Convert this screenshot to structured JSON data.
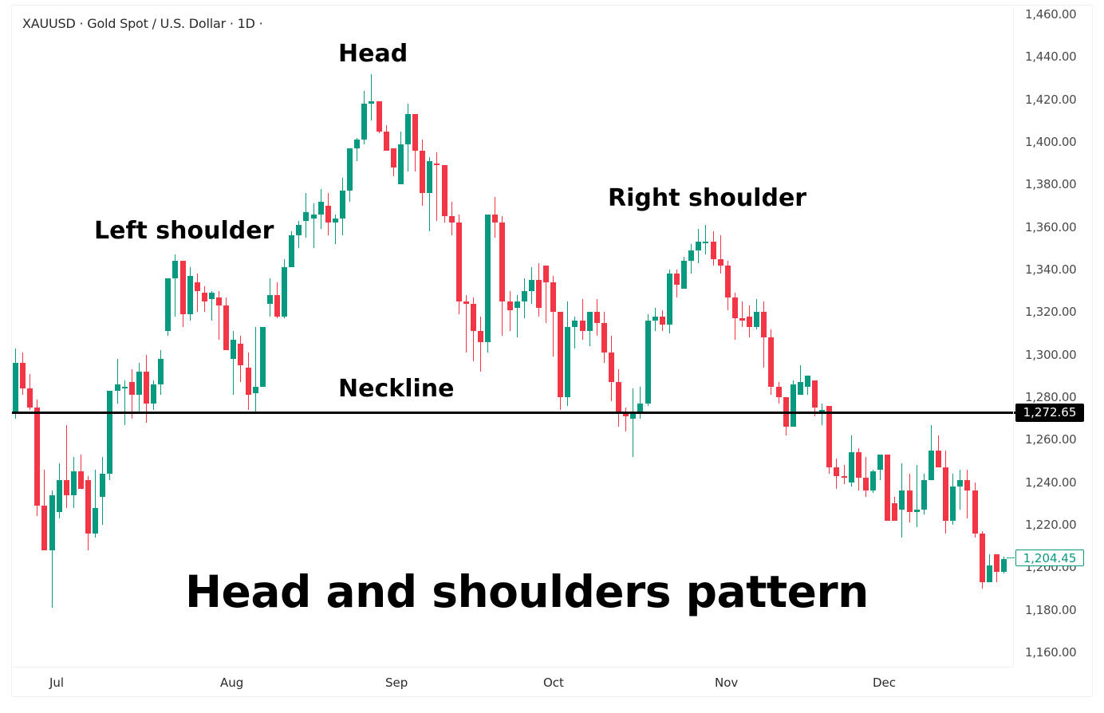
{
  "header": {
    "symbol_title": "XAUUSD · Gold Spot / U.S. Dollar · 1D ·"
  },
  "annotations": {
    "head": "Head",
    "left_shoulder": "Left shoulder",
    "right_shoulder": "Right shoulder",
    "neckline": "Neckline",
    "title": "Head and shoulders pattern"
  },
  "price_labels": {
    "neckline": "1,272.65",
    "last_price": "1,204.45"
  },
  "colors": {
    "up": "#089981",
    "down": "#f23645",
    "neckline": "#000000",
    "axis_text": "#4a4a4a"
  },
  "chart_data": {
    "type": "candlestick",
    "title": "XAUUSD · Gold Spot / U.S. Dollar · 1D",
    "subtitle": "Head and shoulders pattern",
    "xlabel": "",
    "ylabel": "",
    "x_tick_labels": [
      "Jul",
      "Aug",
      "Sep",
      "Oct",
      "Nov",
      "Dec"
    ],
    "y_tick_labels": [
      "1,460.00",
      "1,440.00",
      "1,420.00",
      "1,400.00",
      "1,380.00",
      "1,360.00",
      "1,340.00",
      "1,320.00",
      "1,300.00",
      "1,280.00",
      "1,260.00",
      "1,240.00",
      "1,220.00",
      "1,200.00",
      "1,180.00",
      "1,160.00"
    ],
    "y_ticks": [
      1460,
      1440,
      1420,
      1400,
      1380,
      1360,
      1340,
      1320,
      1300,
      1280,
      1260,
      1240,
      1220,
      1200,
      1180,
      1160
    ],
    "ylim": [
      1156,
      1462
    ],
    "grid": false,
    "legend": "none",
    "horizontal_lines": [
      {
        "name": "Neckline",
        "value": 1272.65
      }
    ],
    "last_price": 1204.45,
    "pattern_annotations": [
      {
        "label": "Left shoulder",
        "approx_price": 1347
      },
      {
        "label": "Head",
        "approx_price": 1433
      },
      {
        "label": "Right shoulder",
        "approx_price": 1361
      },
      {
        "label": "Neckline",
        "approx_price": 1272.65
      }
    ],
    "ohlc": [
      [
        1272,
        1303,
        1270,
        1296
      ],
      [
        1296,
        1301,
        1281,
        1284
      ],
      [
        1284,
        1291,
        1274,
        1275
      ],
      [
        1275,
        1279,
        1224,
        1229
      ],
      [
        1229,
        1246,
        1215,
        1208
      ],
      [
        1208,
        1236,
        1181,
        1234
      ],
      [
        1226,
        1249,
        1223,
        1241
      ],
      [
        1241,
        1267,
        1228,
        1234
      ],
      [
        1234,
        1252,
        1228,
        1245
      ],
      [
        1245,
        1253,
        1237,
        1237
      ],
      [
        1241,
        1243,
        1208,
        1216
      ],
      [
        1216,
        1246,
        1214,
        1228
      ],
      [
        1233,
        1252,
        1220,
        1244
      ],
      [
        1244,
        1283,
        1241,
        1283
      ],
      [
        1283,
        1298,
        1277,
        1286
      ],
      [
        1285,
        1288,
        1267,
        1285
      ],
      [
        1287,
        1293,
        1270,
        1281
      ],
      [
        1281,
        1296,
        1273,
        1292
      ],
      [
        1292,
        1300,
        1268,
        1277
      ],
      [
        1277,
        1288,
        1274,
        1286
      ],
      [
        1286,
        1302,
        1281,
        1298
      ],
      [
        1311,
        1331,
        1309,
        1336
      ],
      [
        1336,
        1347,
        1318,
        1344
      ],
      [
        1344,
        1344,
        1313,
        1319
      ],
      [
        1319,
        1341,
        1316,
        1337
      ],
      [
        1334,
        1338,
        1320,
        1330
      ],
      [
        1329,
        1332,
        1320,
        1325
      ],
      [
        1326,
        1330,
        1316,
        1329
      ],
      [
        1327,
        1330,
        1307,
        1323
      ],
      [
        1323,
        1327,
        1302,
        1302
      ],
      [
        1298,
        1311,
        1281,
        1307
      ],
      [
        1305,
        1309,
        1287,
        1295
      ],
      [
        1294,
        1301,
        1274,
        1281
      ],
      [
        1282,
        1313,
        1272,
        1285
      ],
      [
        1285,
        1312,
        1290,
        1313
      ],
      [
        1324,
        1336,
        1318,
        1328
      ],
      [
        1328,
        1334,
        1317,
        1318
      ],
      [
        1318,
        1345,
        1317,
        1341
      ],
      [
        1341,
        1358,
        1342,
        1356
      ],
      [
        1356,
        1363,
        1350,
        1361
      ],
      [
        1363,
        1376,
        1355,
        1367
      ],
      [
        1364,
        1371,
        1350,
        1366
      ],
      [
        1366,
        1378,
        1359,
        1372
      ],
      [
        1370,
        1376,
        1356,
        1362
      ],
      [
        1362,
        1366,
        1352,
        1364
      ],
      [
        1364,
        1383,
        1356,
        1377
      ],
      [
        1377,
        1395,
        1372,
        1397
      ],
      [
        1397,
        1402,
        1391,
        1401
      ],
      [
        1401,
        1424,
        1399,
        1418
      ],
      [
        1418,
        1432,
        1410,
        1419
      ],
      [
        1419,
        1419,
        1404,
        1405
      ],
      [
        1405,
        1408,
        1399,
        1396
      ],
      [
        1397,
        1395,
        1384,
        1388
      ],
      [
        1380,
        1405,
        1381,
        1399
      ],
      [
        1399,
        1418,
        1386,
        1413
      ],
      [
        1413,
        1412,
        1386,
        1396
      ],
      [
        1396,
        1401,
        1370,
        1376
      ],
      [
        1376,
        1393,
        1358,
        1391
      ],
      [
        1390,
        1395,
        1363,
        1389
      ],
      [
        1389,
        1388,
        1362,
        1365
      ],
      [
        1365,
        1372,
        1356,
        1362
      ],
      [
        1362,
        1366,
        1319,
        1325
      ],
      [
        1325,
        1328,
        1301,
        1324
      ],
      [
        1324,
        1327,
        1297,
        1311
      ],
      [
        1311,
        1318,
        1292,
        1306
      ],
      [
        1306,
        1365,
        1301,
        1366
      ],
      [
        1366,
        1374,
        1355,
        1362
      ],
      [
        1362,
        1365,
        1309,
        1325
      ],
      [
        1325,
        1330,
        1311,
        1321
      ],
      [
        1322,
        1328,
        1308,
        1325
      ],
      [
        1325,
        1336,
        1317,
        1330
      ],
      [
        1330,
        1341,
        1324,
        1335
      ],
      [
        1335,
        1343,
        1318,
        1322
      ],
      [
        1342,
        1339,
        1315,
        1334
      ],
      [
        1334,
        1337,
        1299,
        1320
      ],
      [
        1320,
        1317,
        1274,
        1280
      ],
      [
        1280,
        1325,
        1276,
        1313
      ],
      [
        1313,
        1318,
        1303,
        1316
      ],
      [
        1316,
        1326,
        1307,
        1311
      ],
      [
        1311,
        1320,
        1304,
        1320
      ],
      [
        1320,
        1326,
        1309,
        1315
      ],
      [
        1315,
        1320,
        1296,
        1301
      ],
      [
        1301,
        1309,
        1278,
        1287
      ],
      [
        1287,
        1293,
        1266,
        1273
      ],
      [
        1273,
        1275,
        1264,
        1271
      ],
      [
        1270,
        1284,
        1252,
        1273
      ],
      [
        1273,
        1285,
        1270,
        1277
      ],
      [
        1277,
        1319,
        1276,
        1316
      ],
      [
        1316,
        1322,
        1311,
        1318
      ],
      [
        1318,
        1321,
        1311,
        1314
      ],
      [
        1314,
        1340,
        1310,
        1338
      ],
      [
        1338,
        1340,
        1327,
        1333
      ],
      [
        1331,
        1346,
        1332,
        1344
      ],
      [
        1344,
        1352,
        1338,
        1349
      ],
      [
        1349,
        1359,
        1343,
        1353
      ],
      [
        1353,
        1361,
        1347,
        1353
      ],
      [
        1353,
        1358,
        1342,
        1345
      ],
      [
        1345,
        1356,
        1338,
        1342
      ],
      [
        1342,
        1344,
        1321,
        1327
      ],
      [
        1327,
        1329,
        1307,
        1317
      ],
      [
        1317,
        1325,
        1313,
        1316
      ],
      [
        1318,
        1323,
        1308,
        1313
      ],
      [
        1313,
        1326,
        1312,
        1320
      ],
      [
        1320,
        1325,
        1294,
        1308
      ],
      [
        1308,
        1312,
        1281,
        1285
      ],
      [
        1285,
        1287,
        1277,
        1280
      ],
      [
        1280,
        1278,
        1262,
        1266
      ],
      [
        1266,
        1288,
        1268,
        1286
      ],
      [
        1281,
        1295,
        1283,
        1287
      ],
      [
        1285,
        1290,
        1281,
        1290
      ],
      [
        1288,
        1288,
        1271,
        1275
      ],
      [
        1273,
        1277,
        1267,
        1274
      ],
      [
        1276,
        1275,
        1244,
        1247
      ],
      [
        1247,
        1251,
        1237,
        1243
      ],
      [
        1243,
        1248,
        1239,
        1242
      ],
      [
        1240,
        1262,
        1238,
        1254
      ],
      [
        1254,
        1256,
        1236,
        1242
      ],
      [
        1242,
        1252,
        1233,
        1236
      ],
      [
        1236,
        1246,
        1235,
        1245
      ],
      [
        1246,
        1251,
        1241,
        1253
      ],
      [
        1253,
        1252,
        1222,
        1222
      ],
      [
        1230,
        1233,
        1222,
        1222
      ],
      [
        1227,
        1249,
        1214,
        1236
      ],
      [
        1236,
        1244,
        1221,
        1226
      ],
      [
        1226,
        1248,
        1219,
        1227
      ],
      [
        1227,
        1244,
        1225,
        1241
      ],
      [
        1241,
        1267,
        1242,
        1255
      ],
      [
        1255,
        1262,
        1249,
        1247
      ],
      [
        1247,
        1255,
        1216,
        1222
      ],
      [
        1222,
        1244,
        1220,
        1238
      ],
      [
        1238,
        1246,
        1227,
        1241
      ],
      [
        1241,
        1246,
        1223,
        1236
      ],
      [
        1236,
        1240,
        1214,
        1216
      ],
      [
        1216,
        1217,
        1190,
        1193
      ],
      [
        1193,
        1206,
        1195,
        1201
      ],
      [
        1206,
        1203,
        1193,
        1198
      ],
      [
        1198,
        1205,
        1197,
        1204
      ]
    ]
  }
}
